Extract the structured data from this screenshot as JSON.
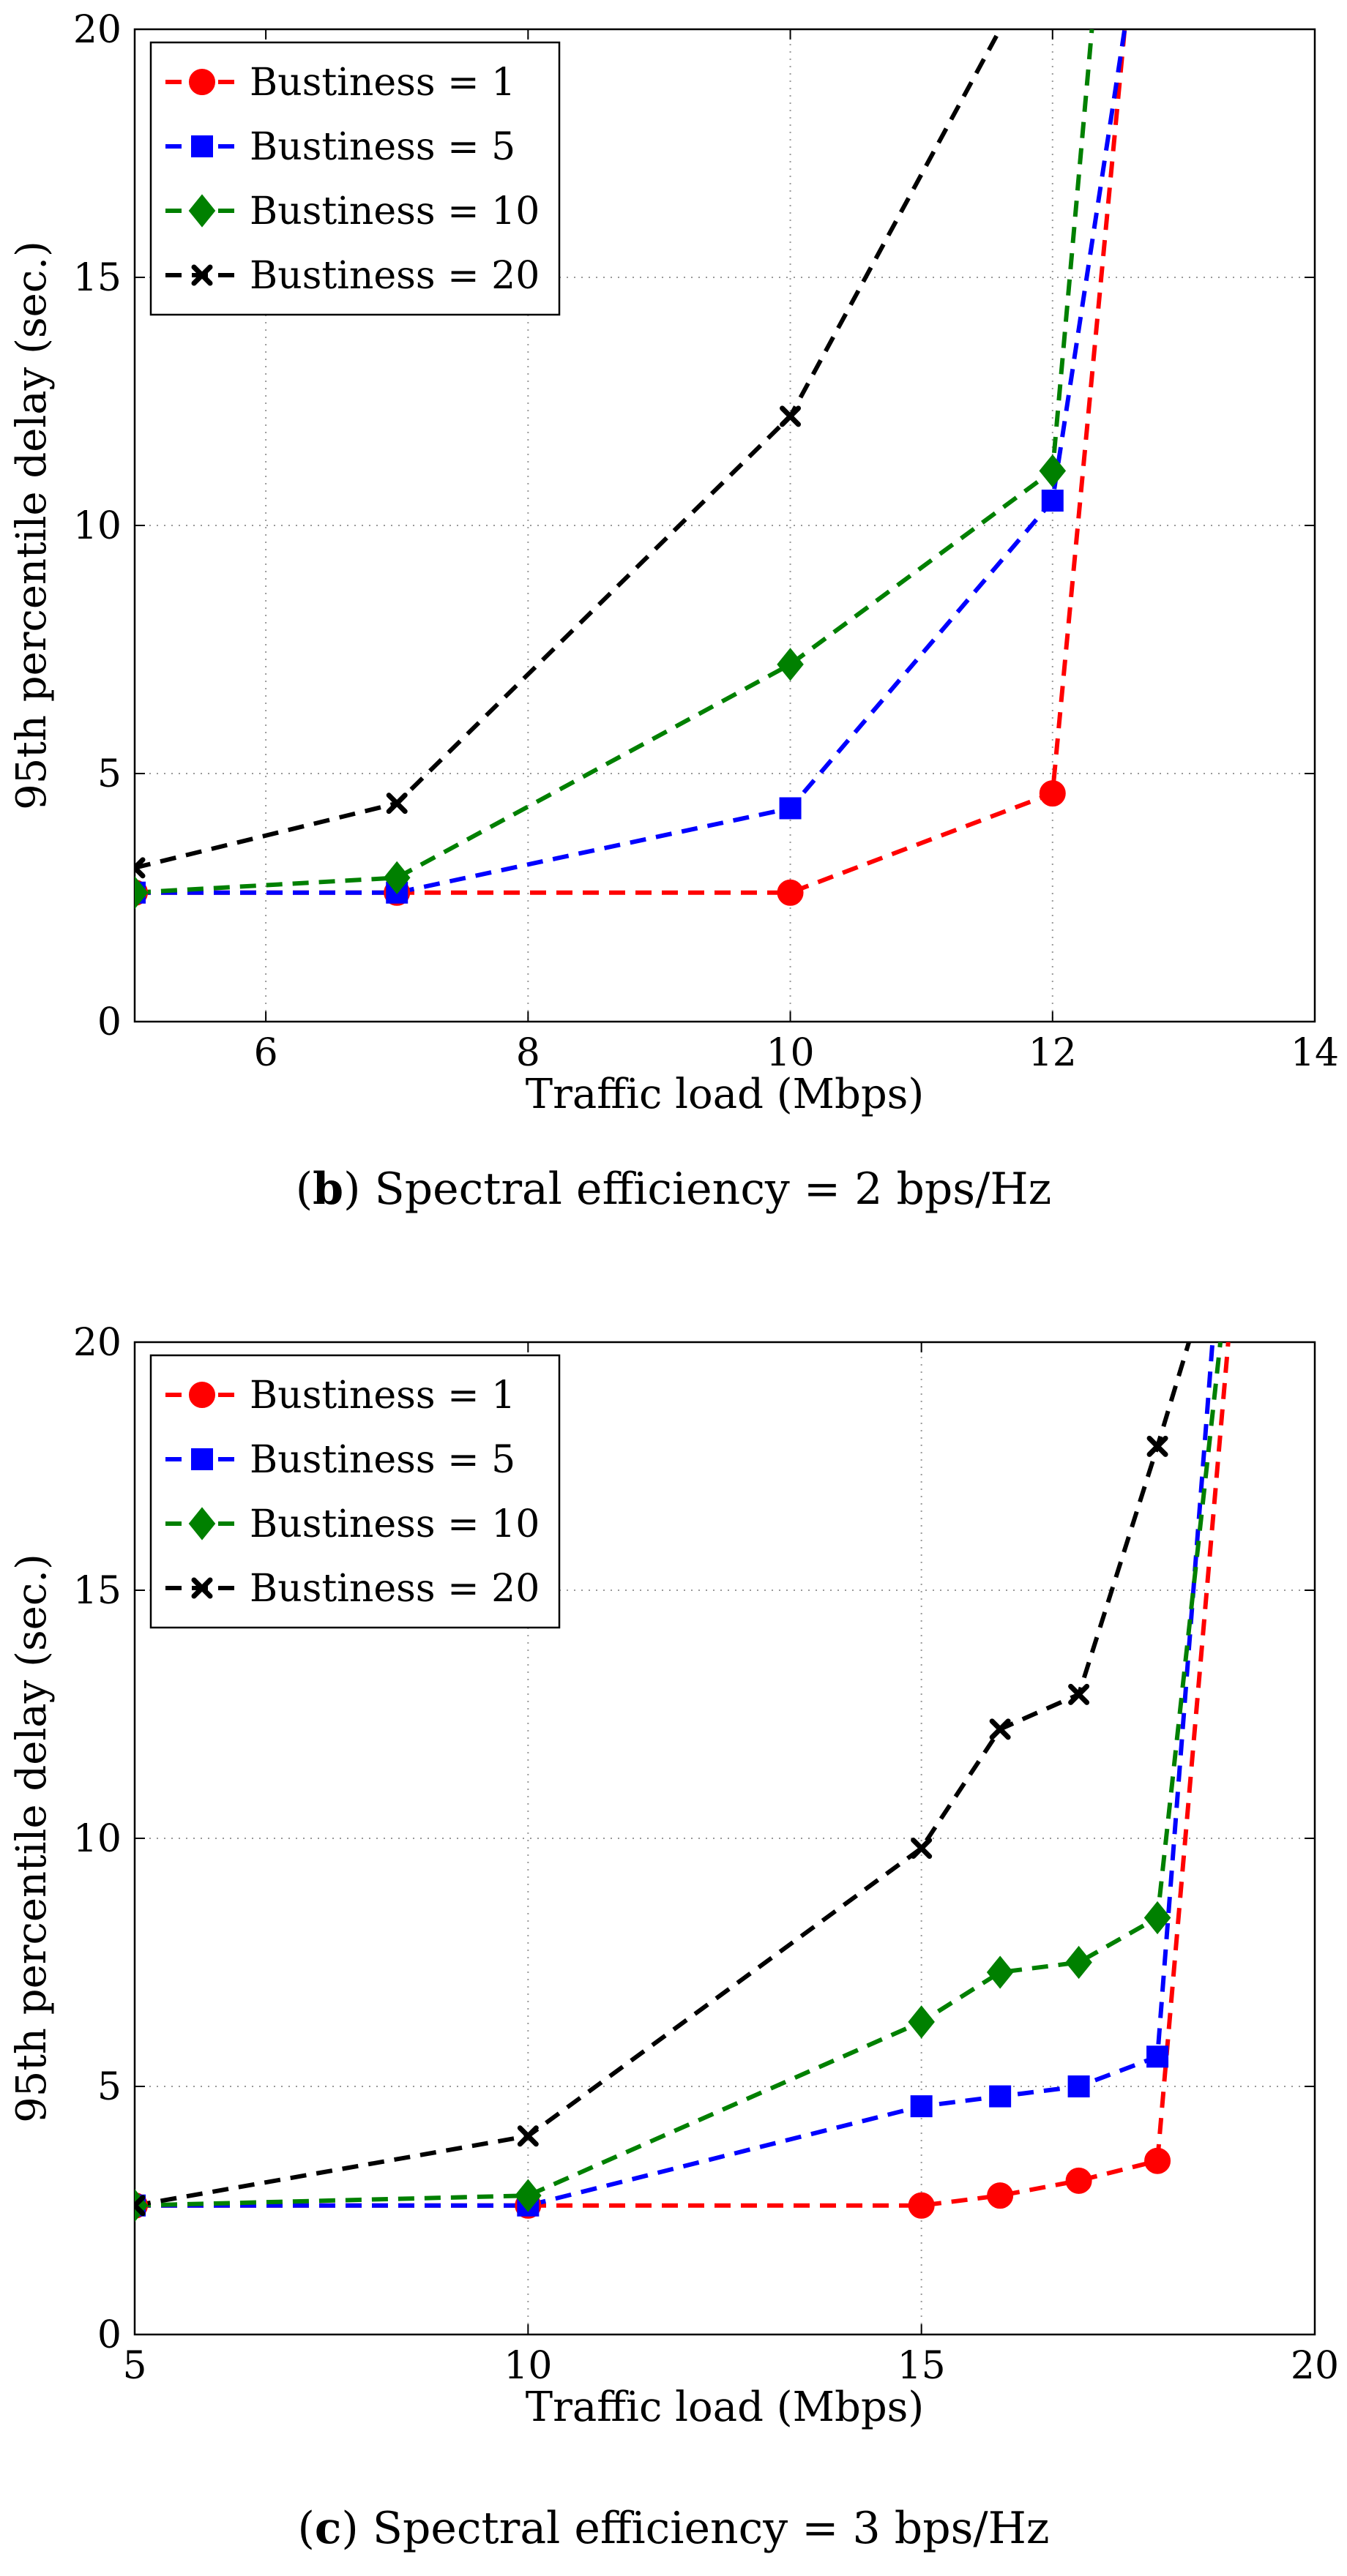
{
  "chart_data": [
    {
      "id": "fig-b",
      "type": "line",
      "caption_letter": "b",
      "caption_text": "Spectral efficiency = 2 bps/Hz",
      "xlabel": "Traffic load (Mbps)",
      "ylabel": "95th percentile delay (sec.)",
      "xlim": [
        5,
        14
      ],
      "ylim": [
        0,
        20
      ],
      "xticks": [
        6,
        8,
        10,
        12,
        14
      ],
      "yticks": [
        0,
        5,
        10,
        15,
        20
      ],
      "grid": true,
      "legend_position": "top-left",
      "series": [
        {
          "name": "Bustiness = 1",
          "color": "#ff0000",
          "marker": "circle",
          "x": [
            5,
            7,
            10,
            12,
            12.55
          ],
          "y": [
            2.6,
            2.6,
            2.6,
            4.6,
            20
          ]
        },
        {
          "name": "Bustiness = 5",
          "color": "#0000ff",
          "marker": "square",
          "x": [
            5,
            7,
            10,
            12,
            12.55
          ],
          "y": [
            2.6,
            2.6,
            4.3,
            10.5,
            20
          ]
        },
        {
          "name": "Bustiness = 10",
          "color": "#008000",
          "marker": "diamond",
          "x": [
            5,
            7,
            10,
            12,
            12.3
          ],
          "y": [
            2.6,
            2.9,
            7.2,
            11.1,
            20
          ]
        },
        {
          "name": "Bustiness = 20",
          "color": "#000000",
          "marker": "x",
          "x": [
            5,
            7,
            10,
            11.6
          ],
          "y": [
            3.1,
            4.4,
            12.2,
            20
          ]
        }
      ]
    },
    {
      "id": "fig-c",
      "type": "line",
      "caption_letter": "c",
      "caption_text": "Spectral efficiency = 3 bps/Hz",
      "xlabel": "Traffic load (Mbps)",
      "ylabel": "95th percentile delay (sec.)",
      "xlim": [
        5,
        20
      ],
      "ylim": [
        0,
        20
      ],
      "xticks": [
        5,
        10,
        15,
        20
      ],
      "yticks": [
        0,
        5,
        10,
        15,
        20
      ],
      "grid": true,
      "legend_position": "top-left",
      "series": [
        {
          "name": "Bustiness = 1",
          "color": "#ff0000",
          "marker": "circle",
          "x": [
            5,
            10,
            15,
            16,
            17,
            18,
            18.9
          ],
          "y": [
            2.6,
            2.6,
            2.6,
            2.8,
            3.1,
            3.5,
            20
          ]
        },
        {
          "name": "Bustiness = 5",
          "color": "#0000ff",
          "marker": "square",
          "x": [
            5,
            10,
            15,
            16,
            17,
            18,
            18.7
          ],
          "y": [
            2.6,
            2.6,
            4.6,
            4.8,
            5.0,
            5.6,
            20
          ]
        },
        {
          "name": "Bustiness = 10",
          "color": "#008000",
          "marker": "diamond",
          "x": [
            5,
            10,
            15,
            16,
            17,
            18,
            18.8
          ],
          "y": [
            2.6,
            2.8,
            6.3,
            7.3,
            7.5,
            8.4,
            20
          ]
        },
        {
          "name": "Bustiness = 20",
          "color": "#000000",
          "marker": "x",
          "x": [
            5,
            10,
            15,
            16,
            17,
            18,
            18.4
          ],
          "y": [
            2.6,
            4.0,
            9.8,
            12.2,
            12.9,
            17.9,
            20
          ]
        }
      ]
    }
  ]
}
